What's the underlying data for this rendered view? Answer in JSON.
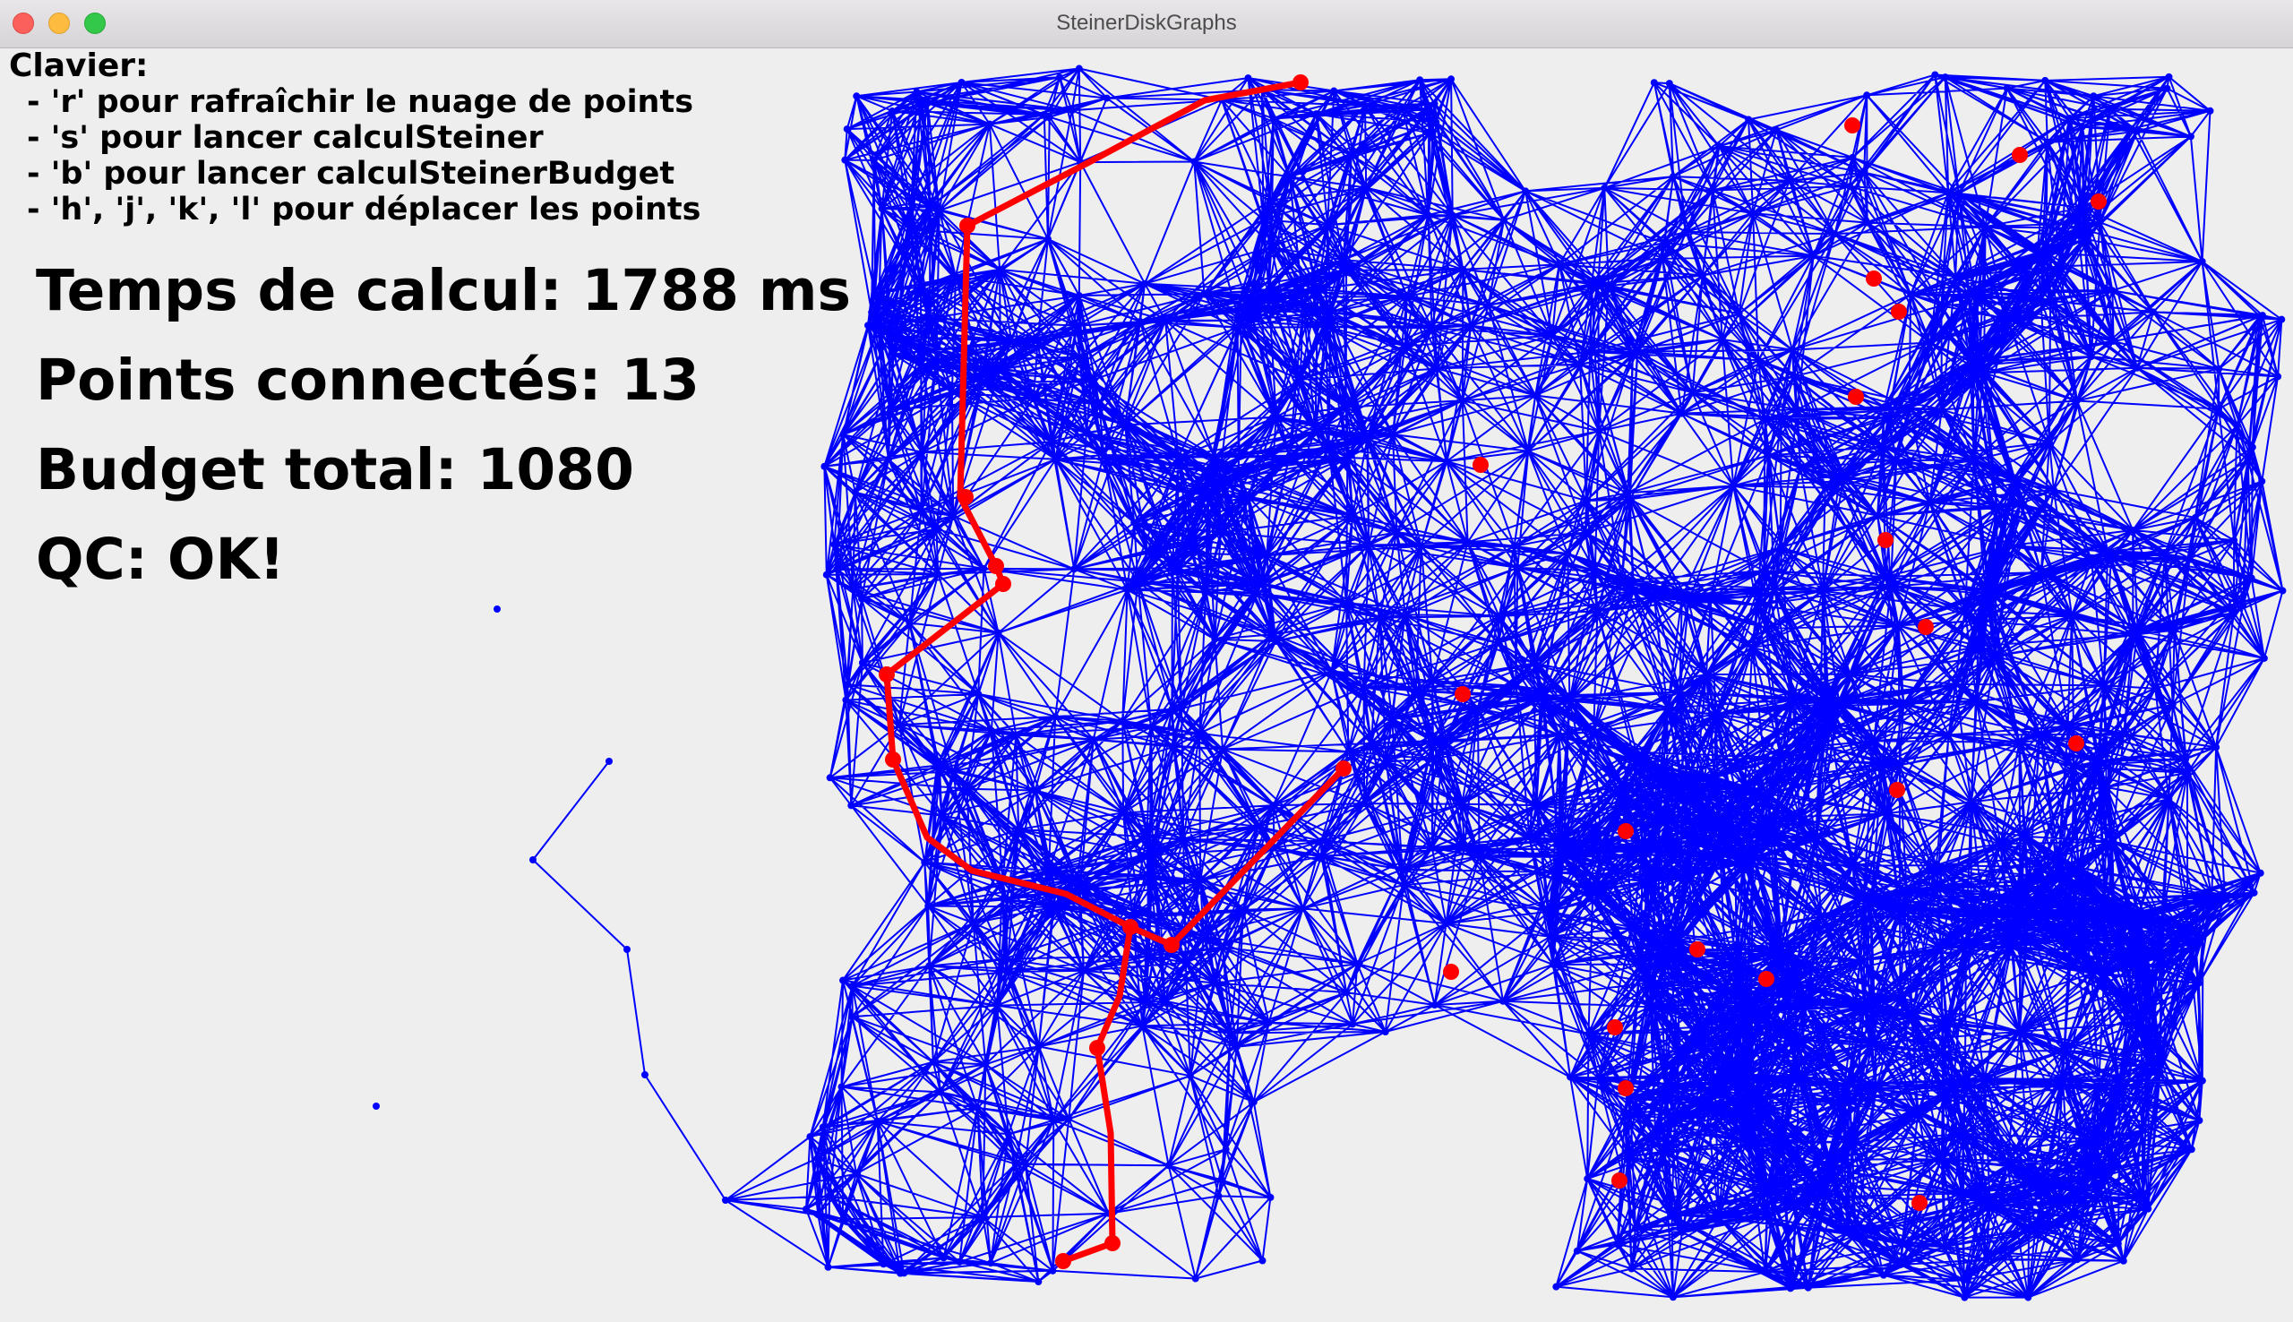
{
  "window": {
    "title": "SteinerDiskGraphs"
  },
  "instructions": {
    "heading": "Clavier:",
    "lines": [
      "- 'r' pour rafraîchir le nuage de points",
      "- 's' pour lancer calculSteiner",
      "- 'b' pour lancer calculSteinerBudget",
      "- 'h', 'j', 'k', 'l' pour déplacer les points"
    ]
  },
  "stats": {
    "compute_time": "Temps de calcul: 1788 ms",
    "connected_points": "Points connectés: 13",
    "total_budget": "Budget total: 1080",
    "qc": "QC: OK!"
  },
  "colors": {
    "graph_edges": "#0000ff",
    "steiner_path": "#ff0000",
    "hit_points": "#ff0000",
    "background": "#eeeeee"
  }
}
